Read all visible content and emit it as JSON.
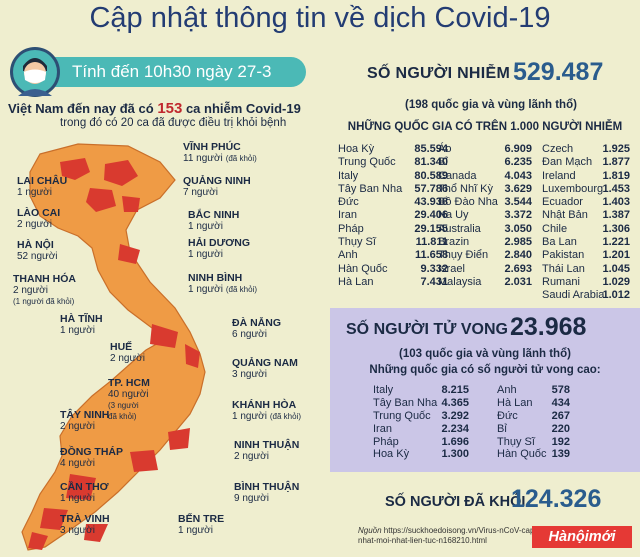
{
  "title": "Cập nhật thông tin về dịch Covid-19",
  "time_banner": "Tính đến 10h30 ngày 27-3",
  "vietnam": {
    "line1_prefix": "Việt Nam đến nay đã có ",
    "line1_count": "153",
    "line1_suffix": " ca nhiễm Covid-19",
    "line2": "trong đó có 20 ca đã được điều trị khỏi bệnh"
  },
  "provinces": [
    {
      "name": "VĨNH PHÚC",
      "count": "11 người",
      "cured": "(đã khỏi)"
    },
    {
      "name": "LAI CHÂU",
      "count": "1 người",
      "cured": ""
    },
    {
      "name": "QUẢNG NINH",
      "count": "7 người",
      "cured": ""
    },
    {
      "name": "LÀO CAI",
      "count": "2 người",
      "cured": ""
    },
    {
      "name": "BẮC NINH",
      "count": "1 người",
      "cured": ""
    },
    {
      "name": "HÀ NỘI",
      "count": "52 người",
      "cured": ""
    },
    {
      "name": "HẢI DƯƠNG",
      "count": "1 người",
      "cured": ""
    },
    {
      "name": "THANH HÓA",
      "count": "2 người",
      "cured": "(1 người đã khỏi)"
    },
    {
      "name": "NINH BÌNH",
      "count": "1 người",
      "cured": "(đã khỏi)"
    },
    {
      "name": "HÀ TĨNH",
      "count": "1 người",
      "cured": ""
    },
    {
      "name": "ĐÀ NẴNG",
      "count": "6 người",
      "cured": ""
    },
    {
      "name": "HUẾ",
      "count": "2 người",
      "cured": ""
    },
    {
      "name": "QUẢNG NAM",
      "count": "3 người",
      "cured": ""
    },
    {
      "name": "TP. HCM",
      "count": "40 người",
      "cured": "(3 người đã khỏi)"
    },
    {
      "name": "KHÁNH HÒA",
      "count": "1 người",
      "cured": "(đã khỏi)"
    },
    {
      "name": "TÂY NINH",
      "count": "2 người",
      "cured": ""
    },
    {
      "name": "NINH THUẬN",
      "count": "2 người",
      "cured": ""
    },
    {
      "name": "ĐỒNG THÁP",
      "count": "4 người",
      "cured": ""
    },
    {
      "name": "BÌNH THUẬN",
      "count": "9 người",
      "cured": ""
    },
    {
      "name": "CẦN THƠ",
      "count": "1 người",
      "cured": ""
    },
    {
      "name": "TRÀ VINH",
      "count": "3 người",
      "cured": ""
    },
    {
      "name": "BẾN TRE",
      "count": "1 người",
      "cured": ""
    }
  ],
  "infected": {
    "label": "SỐ NGƯỜI NHIỄM",
    "total": "529.487",
    "sub": "(198 quốc gia và vùng lãnh thổ)",
    "heading": "NHỮNG QUỐC GIA CÓ TRÊN 1.000 NGƯỜI NHIỄM",
    "columns": [
      [
        [
          "Hoa Kỳ",
          "85.594"
        ],
        [
          "Trung Quốc",
          "81.340"
        ],
        [
          "Italy",
          "80.589"
        ],
        [
          "Tây Ban Nha",
          "57.786"
        ],
        [
          "Đức",
          "43.938"
        ],
        [
          "Iran",
          "29.406"
        ],
        [
          "Pháp",
          "29.155"
        ],
        [
          "Thụy Sĩ",
          "11.811"
        ],
        [
          "Anh",
          "11.658"
        ],
        [
          "Hàn Quốc",
          "9.332"
        ],
        [
          "Hà Lan",
          "7.431"
        ]
      ],
      [
        [
          "Áo",
          "6.909"
        ],
        [
          "Bỉ",
          "6.235"
        ],
        [
          "Canada",
          "4.043"
        ],
        [
          "Thổ Nhĩ Kỳ",
          "3.629"
        ],
        [
          "Bồ Đào Nha",
          "3.544"
        ],
        [
          "Na Uy",
          "3.372"
        ],
        [
          "Australia",
          "3.050"
        ],
        [
          "Brazin",
          "2.985"
        ],
        [
          "Thụy Điển",
          "2.840"
        ],
        [
          "Israel",
          "2.693"
        ],
        [
          "Malaysia",
          "2.031"
        ]
      ],
      [
        [
          "Czech",
          "1.925"
        ],
        [
          "Đan Mạch",
          "1.877"
        ],
        [
          "Ireland",
          "1.819"
        ],
        [
          "Luxembourg",
          "1.453"
        ],
        [
          "Ecuador",
          "1.403"
        ],
        [
          "Nhật Bản",
          "1.387"
        ],
        [
          "Chile",
          "1.306"
        ],
        [
          "Ba Lan",
          "1.221"
        ],
        [
          "Pakistan",
          "1.201"
        ],
        [
          "Thái Lan",
          "1.045"
        ],
        [
          "Rumani",
          "1.029"
        ],
        [
          "Saudi Arabia",
          "1.012"
        ]
      ]
    ]
  },
  "deaths": {
    "label": "SỐ NGƯỜI TỬ VONG",
    "total": "23.968",
    "sub": "(103 quốc gia và vùng lãnh thổ)",
    "heading": "Những quốc gia có số người tử vong cao:",
    "columns": [
      [
        [
          "Italy",
          "8.215"
        ],
        [
          "Tây Ban Nha",
          "4.365"
        ],
        [
          "Trung Quốc",
          "3.292"
        ],
        [
          "Iran",
          "2.234"
        ],
        [
          "Pháp",
          "1.696"
        ],
        [
          "Hoa Kỳ",
          "1.300"
        ]
      ],
      [
        [
          "Anh",
          "578"
        ],
        [
          "Hà Lan",
          "434"
        ],
        [
          "Đức",
          "267"
        ],
        [
          "Bỉ",
          "220"
        ],
        [
          "Thụy Sĩ",
          "192"
        ],
        [
          "Hàn Quốc",
          "139"
        ]
      ]
    ]
  },
  "recovered": {
    "label": "SỐ NGƯỜI ĐÃ KHỎI",
    "total": "124.326"
  },
  "source": {
    "prefix": "Nguồn",
    "text": " https://suckhoedoisong.vn/Virus-nCoV-cap-nhat-moi-nhat-lien-tuc-n168210.html"
  },
  "logo": "Hànộimới",
  "colors": {
    "map_fill": "#ef9b45",
    "map_highlight": "#d93a2f",
    "banner": "#4bb9b6",
    "death_box": "#cbc6e7",
    "title": "#233c73"
  },
  "icons": [
    "masked-person-icon"
  ]
}
